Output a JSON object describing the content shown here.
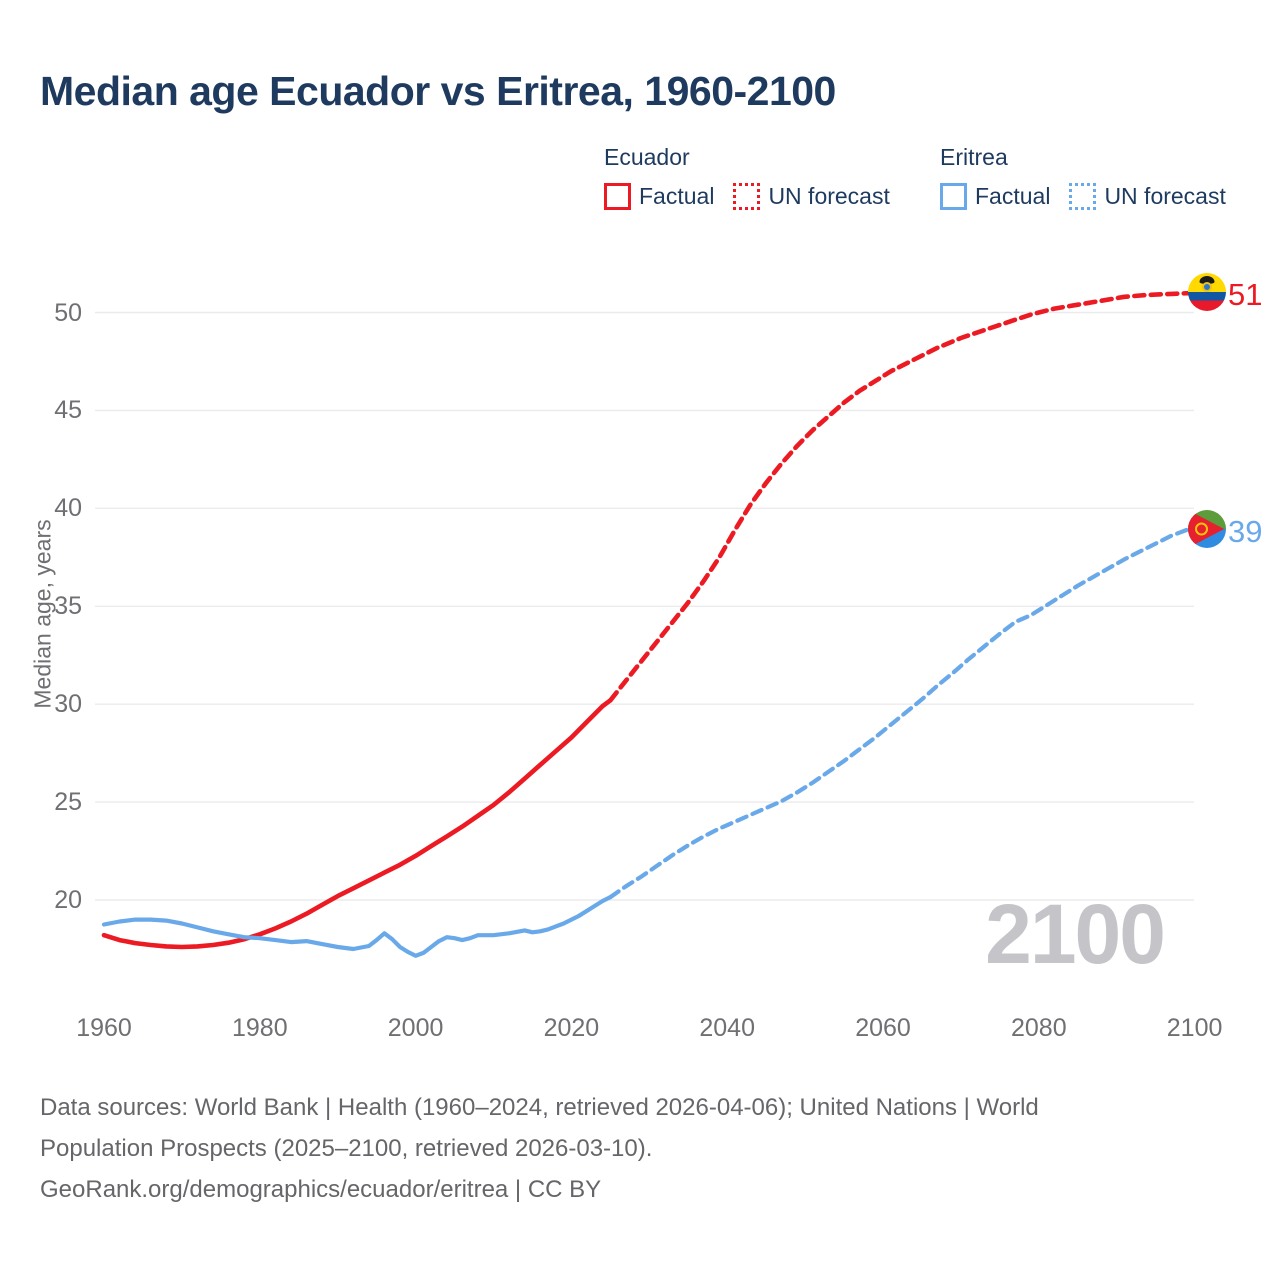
{
  "title": "Median age Ecuador vs Eritrea, 1960-2100",
  "watermark": "2100",
  "legend": {
    "groups": [
      {
        "name": "Ecuador",
        "items": [
          {
            "label": "Factual",
            "style": "solid"
          },
          {
            "label": "UN forecast",
            "style": "dotted"
          }
        ]
      },
      {
        "name": "Eritrea",
        "items": [
          {
            "label": "Factual",
            "style": "solid"
          },
          {
            "label": "UN forecast",
            "style": "dotted"
          }
        ]
      }
    ]
  },
  "footer": {
    "lines": [
      "Data sources: World Bank | Health (1960–2024, retrieved 2026-04-06); United Nations | World",
      "Population Prospects (2025–2100, retrieved 2026-03-10).",
      "GeoRank.org/demographics/ecuador/eritrea | CC BY"
    ]
  },
  "chart_data": {
    "type": "line",
    "title": "Median age Ecuador vs Eritrea, 1960-2100",
    "xlabel": "",
    "ylabel": "Median age, years",
    "xlim": [
      1960,
      2100
    ],
    "ylim": [
      16,
      53
    ],
    "grid": "horizontal",
    "legend_position": "top",
    "x_ticks": [
      1960,
      1980,
      2000,
      2020,
      2040,
      2060,
      2080,
      2100
    ],
    "y_ticks": [
      20,
      25,
      30,
      35,
      40,
      45,
      50
    ],
    "series": [
      {
        "name": "Ecuador Factual",
        "color": "#ec1b23",
        "style": "solid",
        "points": [
          [
            1960,
            18.2
          ],
          [
            1962,
            17.95
          ],
          [
            1964,
            17.8
          ],
          [
            1966,
            17.7
          ],
          [
            1968,
            17.63
          ],
          [
            1970,
            17.6
          ],
          [
            1972,
            17.63
          ],
          [
            1974,
            17.7
          ],
          [
            1976,
            17.82
          ],
          [
            1978,
            18.0
          ],
          [
            1980,
            18.25
          ],
          [
            1982,
            18.55
          ],
          [
            1984,
            18.9
          ],
          [
            1986,
            19.3
          ],
          [
            1988,
            19.75
          ],
          [
            1990,
            20.2
          ],
          [
            1992,
            20.6
          ],
          [
            1994,
            21.0
          ],
          [
            1996,
            21.4
          ],
          [
            1998,
            21.8
          ],
          [
            2000,
            22.25
          ],
          [
            2002,
            22.75
          ],
          [
            2004,
            23.25
          ],
          [
            2006,
            23.75
          ],
          [
            2008,
            24.3
          ],
          [
            2010,
            24.85
          ],
          [
            2012,
            25.5
          ],
          [
            2014,
            26.2
          ],
          [
            2016,
            26.9
          ],
          [
            2018,
            27.6
          ],
          [
            2020,
            28.3
          ],
          [
            2022,
            29.1
          ],
          [
            2024,
            29.9
          ],
          [
            2025,
            30.2
          ]
        ]
      },
      {
        "name": "Ecuador UN forecast",
        "color": "#ec1b23",
        "style": "dashed",
        "points": [
          [
            2025,
            30.2
          ],
          [
            2027,
            31.2
          ],
          [
            2029,
            32.2
          ],
          [
            2031,
            33.2
          ],
          [
            2033,
            34.2
          ],
          [
            2035,
            35.2
          ],
          [
            2037,
            36.3
          ],
          [
            2039,
            37.5
          ],
          [
            2041,
            38.9
          ],
          [
            2043,
            40.2
          ],
          [
            2045,
            41.3
          ],
          [
            2047,
            42.3
          ],
          [
            2049,
            43.2
          ],
          [
            2051,
            44.0
          ],
          [
            2053,
            44.7
          ],
          [
            2055,
            45.4
          ],
          [
            2057,
            46.0
          ],
          [
            2059,
            46.5
          ],
          [
            2061,
            47.0
          ],
          [
            2064,
            47.6
          ],
          [
            2067,
            48.2
          ],
          [
            2070,
            48.7
          ],
          [
            2073,
            49.1
          ],
          [
            2076,
            49.5
          ],
          [
            2079,
            49.9
          ],
          [
            2082,
            50.2
          ],
          [
            2085,
            50.4
          ],
          [
            2088,
            50.6
          ],
          [
            2091,
            50.8
          ],
          [
            2094,
            50.9
          ],
          [
            2097,
            50.95
          ],
          [
            2100,
            51.0
          ]
        ]
      },
      {
        "name": "Eritrea Factual",
        "color": "#6aa9e9",
        "style": "solid",
        "points": [
          [
            1960,
            18.75
          ],
          [
            1962,
            18.9
          ],
          [
            1964,
            19.0
          ],
          [
            1966,
            19.0
          ],
          [
            1968,
            18.95
          ],
          [
            1970,
            18.8
          ],
          [
            1972,
            18.6
          ],
          [
            1974,
            18.4
          ],
          [
            1976,
            18.25
          ],
          [
            1978,
            18.1
          ],
          [
            1980,
            18.05
          ],
          [
            1982,
            17.95
          ],
          [
            1984,
            17.85
          ],
          [
            1986,
            17.9
          ],
          [
            1988,
            17.75
          ],
          [
            1990,
            17.6
          ],
          [
            1992,
            17.5
          ],
          [
            1994,
            17.65
          ],
          [
            1995,
            17.95
          ],
          [
            1996,
            18.3
          ],
          [
            1997,
            18.0
          ],
          [
            1998,
            17.6
          ],
          [
            1999,
            17.35
          ],
          [
            2000,
            17.15
          ],
          [
            2001,
            17.3
          ],
          [
            2002,
            17.6
          ],
          [
            2003,
            17.9
          ],
          [
            2004,
            18.1
          ],
          [
            2005,
            18.05
          ],
          [
            2006,
            17.95
          ],
          [
            2007,
            18.05
          ],
          [
            2008,
            18.2
          ],
          [
            2010,
            18.2
          ],
          [
            2012,
            18.3
          ],
          [
            2014,
            18.45
          ],
          [
            2015,
            18.35
          ],
          [
            2016,
            18.4
          ],
          [
            2017,
            18.5
          ],
          [
            2018,
            18.65
          ],
          [
            2019,
            18.8
          ],
          [
            2020,
            19.0
          ],
          [
            2021,
            19.2
          ],
          [
            2022,
            19.45
          ],
          [
            2023,
            19.7
          ],
          [
            2024,
            19.95
          ],
          [
            2025,
            20.15
          ]
        ]
      },
      {
        "name": "Eritrea UN forecast",
        "color": "#6aa9e9",
        "style": "dashed",
        "points": [
          [
            2025,
            20.15
          ],
          [
            2027,
            20.7
          ],
          [
            2029,
            21.2
          ],
          [
            2031,
            21.75
          ],
          [
            2033,
            22.3
          ],
          [
            2035,
            22.8
          ],
          [
            2037,
            23.25
          ],
          [
            2039,
            23.65
          ],
          [
            2041,
            24.0
          ],
          [
            2043,
            24.35
          ],
          [
            2045,
            24.7
          ],
          [
            2047,
            25.05
          ],
          [
            2049,
            25.5
          ],
          [
            2051,
            26.0
          ],
          [
            2053,
            26.55
          ],
          [
            2055,
            27.1
          ],
          [
            2057,
            27.7
          ],
          [
            2059,
            28.3
          ],
          [
            2061,
            28.95
          ],
          [
            2063,
            29.6
          ],
          [
            2065,
            30.25
          ],
          [
            2067,
            30.95
          ],
          [
            2069,
            31.6
          ],
          [
            2071,
            32.3
          ],
          [
            2073,
            32.95
          ],
          [
            2075,
            33.6
          ],
          [
            2077,
            34.2
          ],
          [
            2079,
            34.55
          ],
          [
            2081,
            35.05
          ],
          [
            2083,
            35.55
          ],
          [
            2085,
            36.05
          ],
          [
            2087,
            36.5
          ],
          [
            2089,
            36.95
          ],
          [
            2091,
            37.4
          ],
          [
            2093,
            37.8
          ],
          [
            2095,
            38.2
          ],
          [
            2097,
            38.6
          ],
          [
            2099,
            38.9
          ],
          [
            2100,
            39.0
          ]
        ]
      }
    ],
    "end_labels": [
      {
        "series": "Ecuador",
        "value": "51",
        "flag": "ecuador"
      },
      {
        "series": "Eritrea",
        "value": "39",
        "flag": "eritrea"
      }
    ]
  }
}
